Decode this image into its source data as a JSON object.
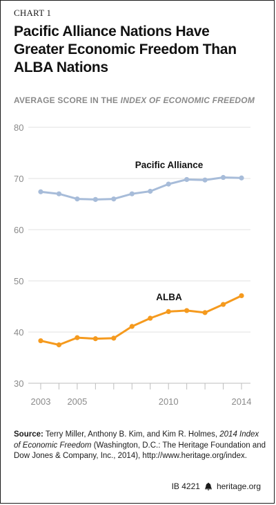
{
  "header": {
    "chart_label": "CHART 1",
    "title": "Pacific Alliance Nations Have Greater Economic Freedom Than ALBA Nations",
    "subtitle_prefix": "AVERAGE SCORE IN THE ",
    "subtitle_em": "INDEX OF ECONOMIC FREEDOM"
  },
  "chart_data": {
    "type": "line",
    "x": [
      2003,
      2004,
      2005,
      2006,
      2007,
      2008,
      2009,
      2010,
      2011,
      2012,
      2013,
      2014
    ],
    "x_tick_labels": [
      "2003",
      "2005",
      "2010",
      "2014"
    ],
    "x_ticks": [
      2003,
      2005,
      2010,
      2014
    ],
    "y_ticks": [
      30,
      40,
      50,
      60,
      70,
      80
    ],
    "ylim": [
      30,
      80
    ],
    "xlim": [
      2003,
      2014
    ],
    "grid": true,
    "series": [
      {
        "name": "Pacific Alliance",
        "color": "#a7bcd9",
        "values": [
          67.4,
          67.0,
          66.0,
          65.9,
          66.0,
          67.0,
          67.5,
          68.9,
          69.8,
          69.7,
          70.2,
          70.1
        ]
      },
      {
        "name": "ALBA",
        "color": "#f59a1e",
        "values": [
          38.3,
          37.5,
          38.9,
          38.7,
          38.8,
          41.1,
          42.7,
          44.0,
          44.2,
          43.8,
          45.4,
          47.1
        ]
      }
    ]
  },
  "source": {
    "label": "Source:",
    "text1": " Terry Miller, Anthony B. Kim, and Kim R. Holmes, ",
    "italic": "2014 Index of Economic Freedom",
    "text2": " (Washington, D.C.: The Heritage Foundation and Dow Jones & Company, Inc., 2014), http://www.heritage.org/index."
  },
  "footer": {
    "id": "IB 4221",
    "site": "heritage.org",
    "logo_icon": "liberty-bell-icon"
  }
}
